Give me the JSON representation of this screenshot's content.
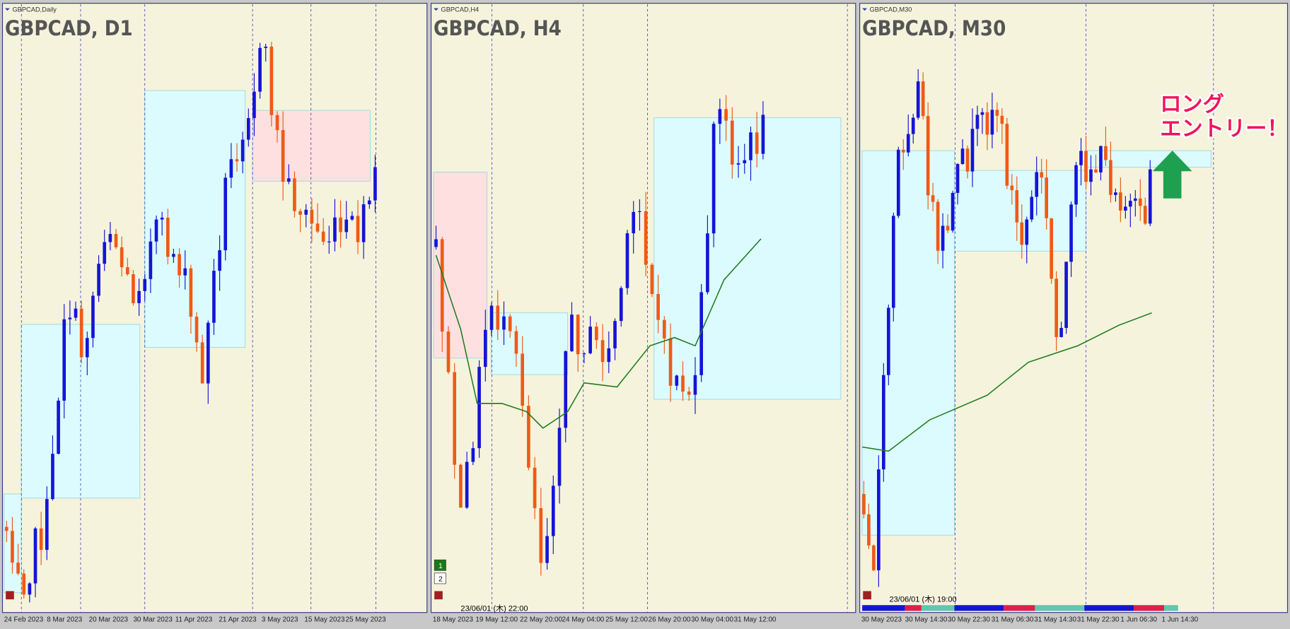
{
  "panels": [
    {
      "header": "GBPCAD,Daily",
      "title": "GBPCAD, D1",
      "x_labels": [
        "24 Feb 2023",
        "8 Mar 2023",
        "20 Mar 2023",
        "30 Mar 2023",
        "11 Apr 2023",
        "21 Apr 2023",
        "3 May 2023",
        "15 May 2023",
        "25 May 2023"
      ]
    },
    {
      "header": "GBPCAD,H4",
      "title": "GBPCAD, H4",
      "time_label": "23/06/01 (木) 22:00",
      "x_labels": [
        "18 May 2023",
        "19 May 12:00",
        "22 May 20:00",
        "24 May 04:00",
        "25 May 12:00",
        "26 May 20:00",
        "30 May 04:00",
        "31 May 12:00"
      ],
      "buttons": [
        "1",
        "2"
      ]
    },
    {
      "header": "GBPCAD,M30",
      "title": "GBPCAD, M30",
      "time_label": "23/06/01 (木) 19:00",
      "x_labels": [
        "30 May 2023",
        "30 May 14:30",
        "30 May 22:30",
        "31 May 06:30",
        "31 May 14:30",
        "31 May 22:30",
        "1 Jun 06:30",
        "1 Jun 14:30"
      ]
    }
  ],
  "annotation": {
    "lines": [
      "ロング",
      "エントリー！"
    ]
  }
}
